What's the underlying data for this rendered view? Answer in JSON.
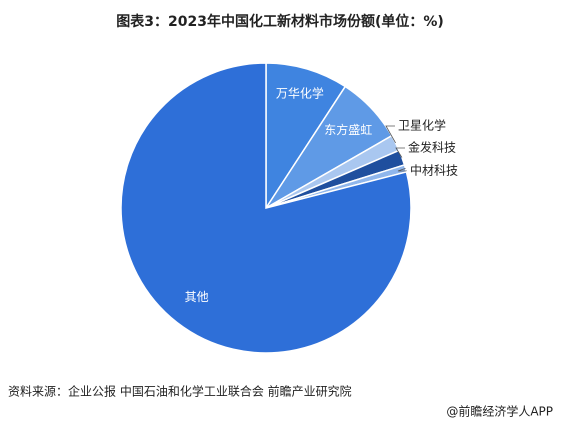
{
  "chart_data": {
    "type": "pie",
    "title": "图表3：2023年中国化工新材料市场份额(单位：%)",
    "categories": [
      "万华化学",
      "东方盛虹",
      "卫星化学",
      "金发科技",
      "中材科技",
      "其他"
    ],
    "values": [
      9.2,
      7.5,
      1.8,
      1.7,
      0.8,
      79.0
    ],
    "colors": [
      "#3f84e0",
      "#5f9ae6",
      "#a9c7f0",
      "#1f4f9e",
      "#8fb6ec",
      "#2e6fd8"
    ],
    "source": "资料来源：企业公报 中国石油和化学工业联合会 前瞻产业研究院",
    "credit": "@前瞻经济学人APP"
  }
}
